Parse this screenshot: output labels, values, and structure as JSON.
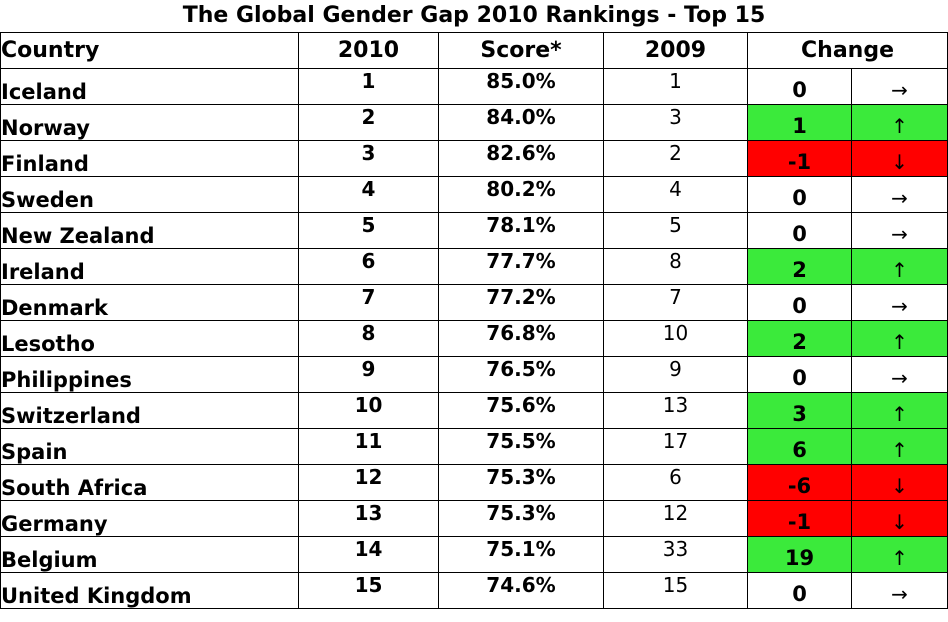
{
  "title": "The Global Gender Gap 2010 Rankings - Top 15",
  "colors": {
    "up": "#3bea3b",
    "down": "#ff0000",
    "same": "#ffffff"
  },
  "chart_data": {
    "type": "table",
    "title": "The Global Gender Gap 2010 Rankings - Top 15",
    "columns": [
      "Country",
      "2010",
      "Score*",
      "2009",
      "Change"
    ],
    "rows": [
      {
        "country": "Iceland",
        "rank2010": "1",
        "score": "85.0%",
        "rank2009": "1",
        "change": "0",
        "direction": "same",
        "arrow": "→"
      },
      {
        "country": "Norway",
        "rank2010": "2",
        "score": "84.0%",
        "rank2009": "3",
        "change": "1",
        "direction": "up",
        "arrow": "↑"
      },
      {
        "country": "Finland",
        "rank2010": "3",
        "score": "82.6%",
        "rank2009": "2",
        "change": "-1",
        "direction": "down",
        "arrow": "↓"
      },
      {
        "country": "Sweden",
        "rank2010": "4",
        "score": "80.2%",
        "rank2009": "4",
        "change": "0",
        "direction": "same",
        "arrow": "→"
      },
      {
        "country": "New Zealand",
        "rank2010": "5",
        "score": "78.1%",
        "rank2009": "5",
        "change": "0",
        "direction": "same",
        "arrow": "→"
      },
      {
        "country": "Ireland",
        "rank2010": "6",
        "score": "77.7%",
        "rank2009": "8",
        "change": "2",
        "direction": "up",
        "arrow": "↑"
      },
      {
        "country": "Denmark",
        "rank2010": "7",
        "score": "77.2%",
        "rank2009": "7",
        "change": "0",
        "direction": "same",
        "arrow": "→"
      },
      {
        "country": "Lesotho",
        "rank2010": "8",
        "score": "76.8%",
        "rank2009": "10",
        "change": "2",
        "direction": "up",
        "arrow": "↑"
      },
      {
        "country": "Philippines",
        "rank2010": "9",
        "score": "76.5%",
        "rank2009": "9",
        "change": "0",
        "direction": "same",
        "arrow": "→"
      },
      {
        "country": "Switzerland",
        "rank2010": "10",
        "score": "75.6%",
        "rank2009": "13",
        "change": "3",
        "direction": "up",
        "arrow": "↑"
      },
      {
        "country": "Spain",
        "rank2010": "11",
        "score": "75.5%",
        "rank2009": "17",
        "change": "6",
        "direction": "up",
        "arrow": "↑"
      },
      {
        "country": "South Africa",
        "rank2010": "12",
        "score": "75.3%",
        "rank2009": "6",
        "change": "-6",
        "direction": "down",
        "arrow": "↓"
      },
      {
        "country": "Germany",
        "rank2010": "13",
        "score": "75.3%",
        "rank2009": "12",
        "change": "-1",
        "direction": "down",
        "arrow": "↓"
      },
      {
        "country": "Belgium",
        "rank2010": "14",
        "score": "75.1%",
        "rank2009": "33",
        "change": "19",
        "direction": "up",
        "arrow": "↑"
      },
      {
        "country": "United Kingdom",
        "rank2010": "15",
        "score": "74.6%",
        "rank2009": "15",
        "change": "0",
        "direction": "same",
        "arrow": "→"
      }
    ]
  }
}
